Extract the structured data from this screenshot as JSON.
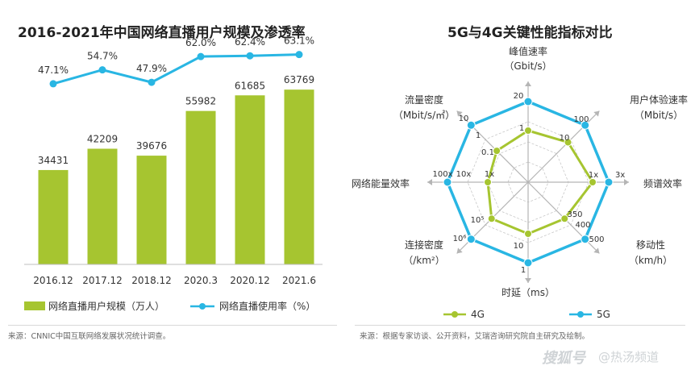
{
  "left": {
    "title": "2016-2021年中国网络直播用户规模及渗透率",
    "source": "来源：CNNIC中国互联网络发展状况统计调查。"
  },
  "right": {
    "title": "5G与4G关键性能指标对比",
    "source": "来源：根据专家访谈、公开资料，艾瑞咨询研究院自主研究及绘制。"
  },
  "watermark": {
    "brand": "搜狐号",
    "channel": "@热汤频道"
  },
  "chart_data": [
    {
      "type": "bar",
      "title": "2016-2021年中国网络直播用户规模及渗透率",
      "categories": [
        "2016.12",
        "2017.12",
        "2018.12",
        "2020.3",
        "2020.12",
        "2021.6"
      ],
      "series": [
        {
          "name": "网络直播用户规模（万人）",
          "type": "bar",
          "color": "#a6c530",
          "values": [
            34431,
            42209,
            39676,
            55982,
            61685,
            63769
          ]
        },
        {
          "name": "网络直播使用率（%）",
          "type": "line",
          "color": "#29b6e3",
          "values": [
            47.1,
            54.7,
            47.9,
            62.0,
            62.4,
            63.1
          ],
          "labels": [
            "47.1%",
            "54.7%",
            "47.9%",
            "62.0%",
            "62.4%",
            "63.1%"
          ]
        }
      ],
      "legend": "bottom",
      "grid": false
    },
    {
      "type": "radar",
      "title": "5G与4G关键性能指标对比",
      "axes": [
        {
          "label": "峰值速率",
          "unit": "（Gbit/s）",
          "val4g": "1",
          "val5g": "20",
          "v4": 0.64,
          "v5": 1.0
        },
        {
          "label": "用户体验速率",
          "unit": "（Mbit/s）",
          "val4g": "10",
          "val5g": "100",
          "v4": 0.7,
          "v5": 1.0
        },
        {
          "label": "频谱效率",
          "unit": "",
          "val4g": "1x",
          "val5g": "3x",
          "v4": 0.8,
          "v5": 1.0
        },
        {
          "label": "移动性",
          "unit": "（km/h）",
          "val4g": "350",
          "val5g": "500",
          "val5g_inner": "400",
          "v4": 0.64,
          "v5": 1.0
        },
        {
          "label": "时延（ms）",
          "unit": "",
          "val4g": "10",
          "val5g": "1",
          "v4": 0.64,
          "v5": 1.0
        },
        {
          "label": "连接密度",
          "unit": "（/km²）",
          "val4g": "10⁵",
          "val5g": "10⁶",
          "v4": 0.64,
          "v5": 1.0
        },
        {
          "label": "网络能量效率",
          "unit": "",
          "val4g": "1x",
          "val5g": "100x",
          "val_mid": "10x",
          "v4": 0.5,
          "v5": 1.0
        },
        {
          "label": "流量密度",
          "unit": "（Mbit/s/㎡）",
          "val4g": "0.1",
          "val5g": "10",
          "val_mid": "1",
          "v4": 0.55,
          "v5": 1.0
        }
      ],
      "series": [
        {
          "name": "4G",
          "color": "#a6c530"
        },
        {
          "name": "5G",
          "color": "#29b6e3"
        }
      ],
      "legend": "bottom"
    }
  ]
}
